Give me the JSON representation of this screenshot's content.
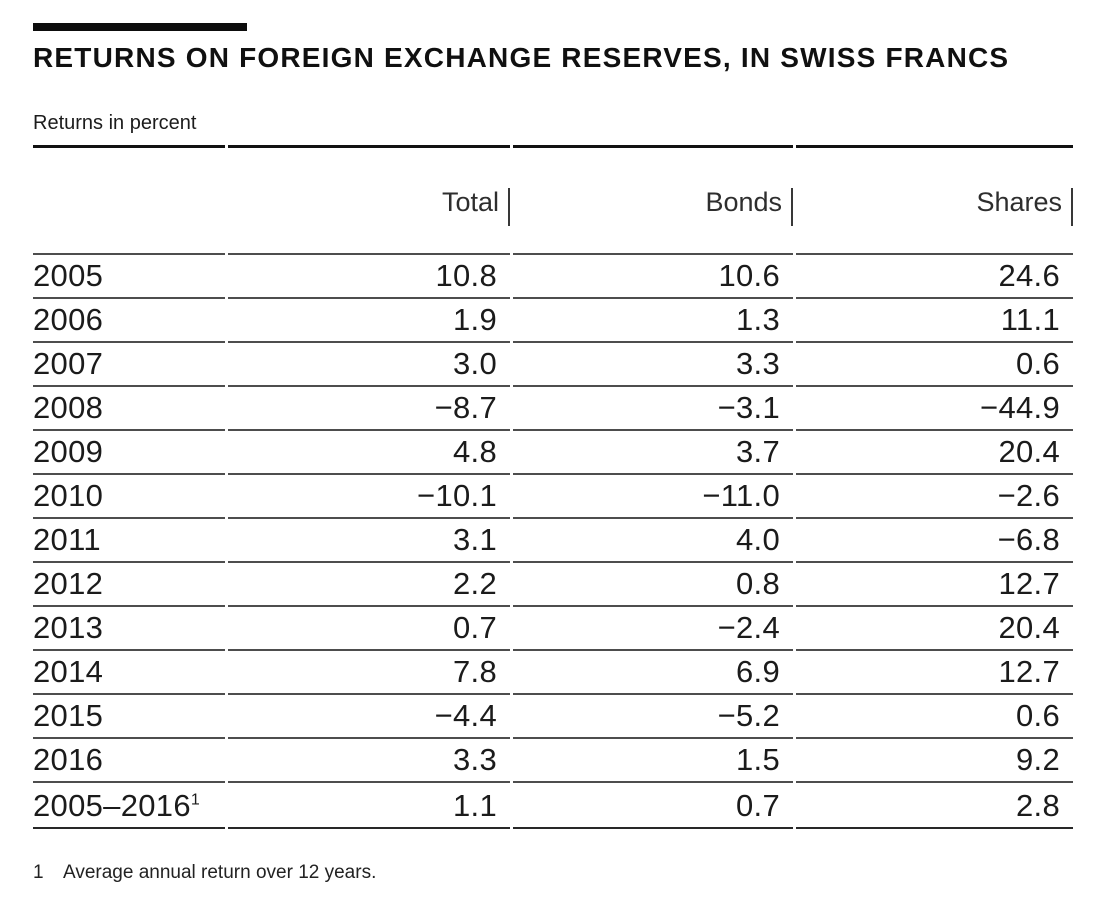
{
  "title": "RETURNS ON FOREIGN EXCHANGE RESERVES, IN SWISS FRANCS",
  "subtitle": "Returns in percent",
  "colors": {
    "rule_black": "#111111",
    "rule_gray": "#4d4d4d",
    "text": "#1a1a1a"
  },
  "table": {
    "columns": [
      "",
      "Total",
      "Bonds",
      "Shares"
    ],
    "rows": [
      {
        "year": "2005",
        "total": "10.8",
        "bonds": "10.6",
        "shares": "24.6"
      },
      {
        "year": "2006",
        "total": "1.9",
        "bonds": "1.3",
        "shares": "11.1"
      },
      {
        "year": "2007",
        "total": "3.0",
        "bonds": "3.3",
        "shares": "0.6"
      },
      {
        "year": "2008",
        "total": "−8.7",
        "bonds": "−3.1",
        "shares": "−44.9"
      },
      {
        "year": "2009",
        "total": "4.8",
        "bonds": "3.7",
        "shares": "20.4"
      },
      {
        "year": "2010",
        "total": "−10.1",
        "bonds": "−11.0",
        "shares": "−2.6"
      },
      {
        "year": "2011",
        "total": "3.1",
        "bonds": "4.0",
        "shares": "−6.8"
      },
      {
        "year": "2012",
        "total": "2.2",
        "bonds": "0.8",
        "shares": "12.7"
      },
      {
        "year": "2013",
        "total": "0.7",
        "bonds": "−2.4",
        "shares": "20.4"
      },
      {
        "year": "2014",
        "total": "7.8",
        "bonds": "6.9",
        "shares": "12.7"
      },
      {
        "year": "2015",
        "total": "−4.4",
        "bonds": "−5.2",
        "shares": "0.6"
      },
      {
        "year": "2016",
        "total": "3.3",
        "bonds": "1.5",
        "shares": "9.2"
      },
      {
        "year": "2005–2016",
        "year_sup": "1",
        "total": "1.1",
        "bonds": "0.7",
        "shares": "2.8"
      }
    ]
  },
  "footnote": {
    "marker": "1",
    "text": "Average annual return over 12 years."
  }
}
